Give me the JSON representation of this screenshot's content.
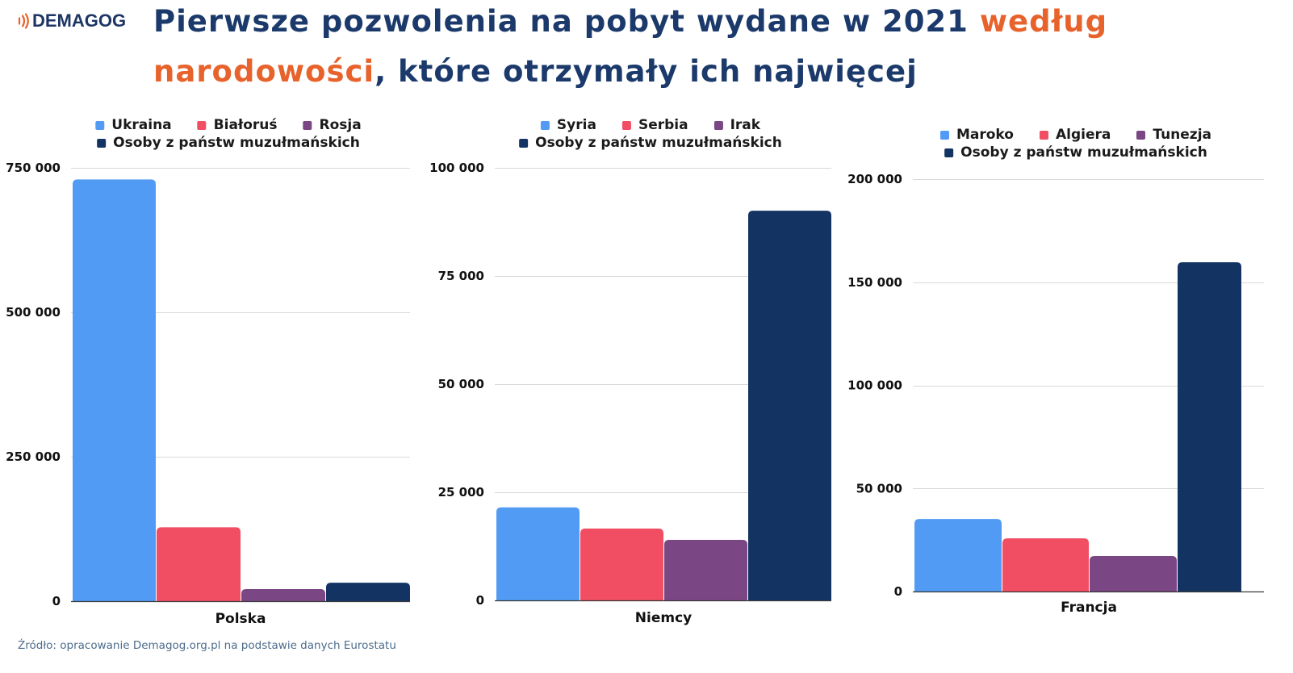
{
  "logo": {
    "text": "DEMAGOG",
    "icon": "sound-waves-icon",
    "icon_color": "#e8622c"
  },
  "title": {
    "line1_dark": "Pierwsze pozwolenia na pobyt wydane w 2021 ",
    "line1_highlight": "według",
    "line2_highlight": "narodowości",
    "line2_dark": ", które otrzymały ich najwięcej"
  },
  "colors": {
    "title": "#1b3a6b",
    "highlight": "#e8622c",
    "gridline": "#d9d9d9",
    "axis": "#3a3a3a"
  },
  "chart_data": [
    {
      "type": "bar",
      "categories": [
        "Polska"
      ],
      "series": [
        {
          "name": "Ukraina",
          "values": [
            730000
          ],
          "color": "#529bf5"
        },
        {
          "name": "Białoruś",
          "values": [
            128000
          ],
          "color": "#f14e64"
        },
        {
          "name": "Rosja",
          "values": [
            21000
          ],
          "color": "#7a4684"
        },
        {
          "name": "Osoby z państw muzułmańskich",
          "values": [
            32000
          ],
          "color": "#133462"
        }
      ],
      "ylim": [
        0,
        750000
      ],
      "yticks": [
        {
          "value": 0,
          "label": "0"
        },
        {
          "value": 250000,
          "label": "250 000"
        },
        {
          "value": 500000,
          "label": "500 000"
        },
        {
          "value": 750000,
          "label": "750 000"
        }
      ],
      "grid": true,
      "legend": "top"
    },
    {
      "type": "bar",
      "categories": [
        "Niemcy"
      ],
      "series": [
        {
          "name": "Syria",
          "values": [
            21500
          ],
          "color": "#529bf5"
        },
        {
          "name": "Serbia",
          "values": [
            16600
          ],
          "color": "#f14e64"
        },
        {
          "name": "Irak",
          "values": [
            14000
          ],
          "color": "#7a4684"
        },
        {
          "name": "Osoby z państw muzułmańskich",
          "values": [
            90100
          ],
          "color": "#133462"
        }
      ],
      "ylim": [
        0,
        100000
      ],
      "yticks": [
        {
          "value": 0,
          "label": "0"
        },
        {
          "value": 25000,
          "label": "25 000"
        },
        {
          "value": 50000,
          "label": "50 000"
        },
        {
          "value": 75000,
          "label": "75 000"
        },
        {
          "value": 100000,
          "label": "100 000"
        }
      ],
      "grid": true,
      "legend": "top"
    },
    {
      "type": "bar",
      "categories": [
        "Francja"
      ],
      "series": [
        {
          "name": "Maroko",
          "values": [
            35200
          ],
          "color": "#529bf5"
        },
        {
          "name": "Algiera",
          "values": [
            25800
          ],
          "color": "#f14e64"
        },
        {
          "name": "Tunezja",
          "values": [
            17200
          ],
          "color": "#7a4684"
        },
        {
          "name": "Osoby z państw muzułmańskich",
          "values": [
            159700
          ],
          "color": "#133462"
        }
      ],
      "ylim": [
        0,
        200000
      ],
      "yticks": [
        {
          "value": 0,
          "label": "0"
        },
        {
          "value": 50000,
          "label": "50 000"
        },
        {
          "value": 100000,
          "label": "100 000"
        },
        {
          "value": 150000,
          "label": "150 000"
        },
        {
          "value": 200000,
          "label": "200 000"
        }
      ],
      "grid": true,
      "legend": "top"
    }
  ],
  "source": "Źródło: opracowanie Demagog.org.pl na podstawie danych Eurostatu"
}
